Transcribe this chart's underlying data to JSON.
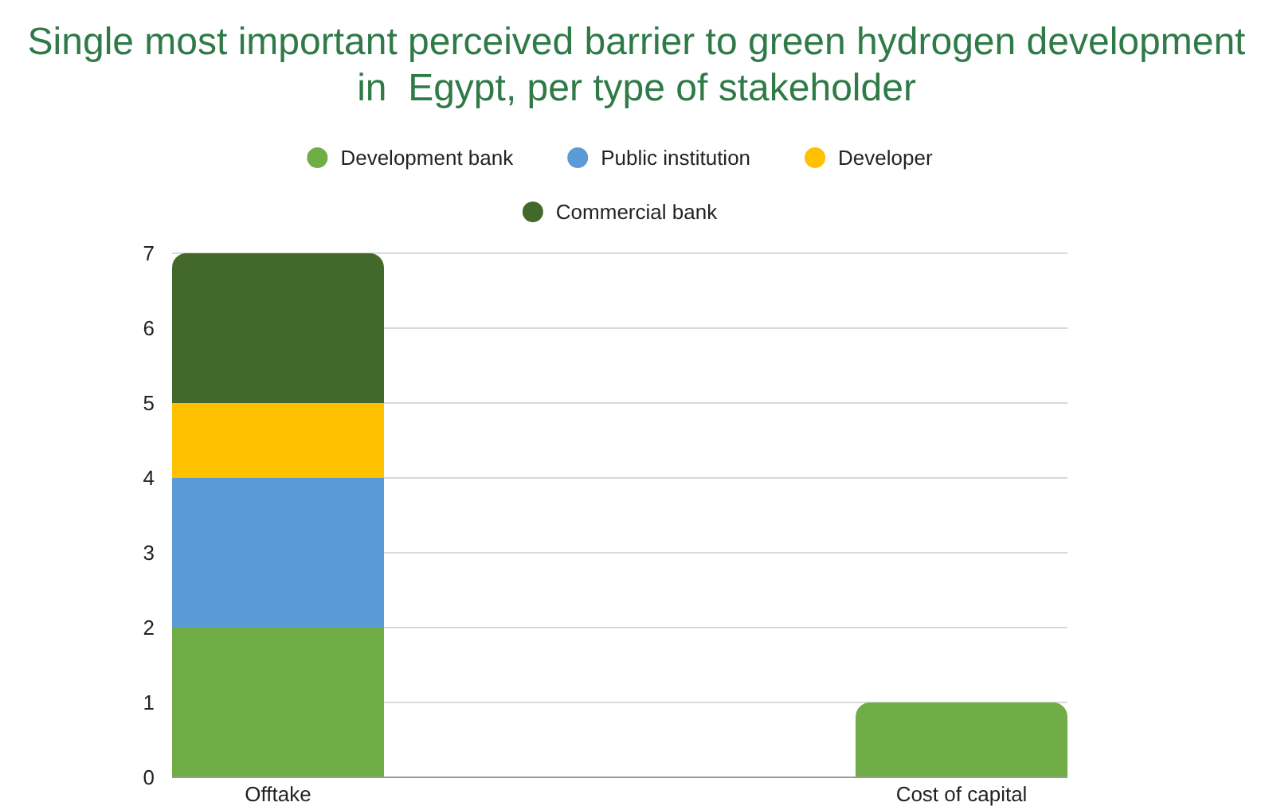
{
  "chart_data": {
    "type": "bar",
    "title": "Single most important perceived barrier to green hydrogen development\nin  Egypt, per type of stakeholder",
    "categories": [
      "Offtake",
      "Cost of capital"
    ],
    "series": [
      {
        "name": "Development bank",
        "color": "#70ad47",
        "values": [
          2,
          1
        ]
      },
      {
        "name": "Public institution",
        "color": "#5b9bd5",
        "values": [
          2,
          0
        ]
      },
      {
        "name": "Developer",
        "color": "#ffc000",
        "values": [
          1,
          0
        ]
      },
      {
        "name": "Commercial bank",
        "color": "#43682b",
        "values": [
          2,
          0
        ]
      }
    ],
    "stacked": true,
    "ylim": [
      0,
      7
    ],
    "yticks": [
      0,
      1,
      2,
      3,
      4,
      5,
      6,
      7
    ],
    "grid": "y",
    "legend": "top"
  }
}
